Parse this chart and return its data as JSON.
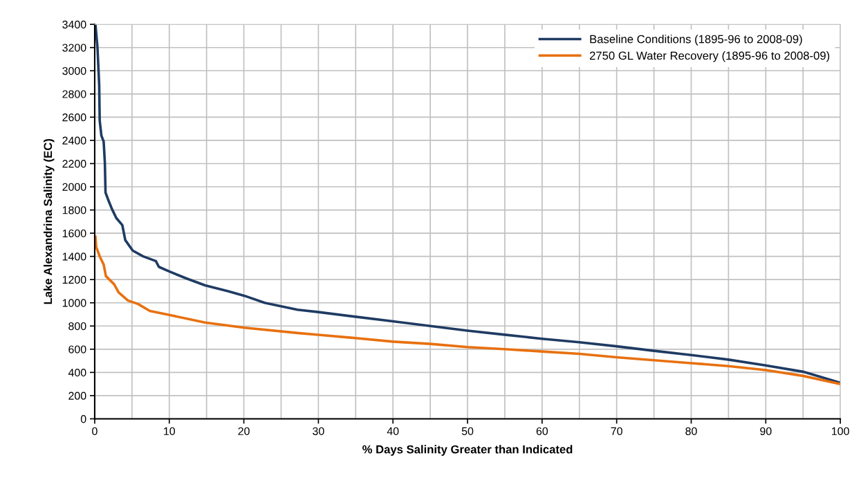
{
  "chart_data": {
    "type": "line",
    "xlabel": "% Days Salinity Greater than Indicated",
    "ylabel": "Lake Alexandrina Salinity (EC)",
    "xlim": [
      0,
      100
    ],
    "ylim": [
      0,
      3400
    ],
    "xticks": [
      0,
      {
        "value": 5,
        "label": null
      },
      10,
      {
        "value": 15,
        "label": null
      },
      20,
      {
        "value": 25,
        "label": null
      },
      30,
      {
        "value": 35,
        "label": null
      },
      40,
      {
        "value": 45,
        "label": null
      },
      50,
      {
        "value": 55,
        "label": null
      },
      60,
      {
        "value": 65,
        "label": null
      },
      70,
      {
        "value": 75,
        "label": null
      },
      80,
      {
        "value": 85,
        "label": null
      },
      90,
      {
        "value": 95,
        "label": null
      },
      100
    ],
    "yticks": [
      0,
      200,
      400,
      600,
      800,
      1000,
      1200,
      1400,
      1600,
      1800,
      2000,
      2200,
      2400,
      2600,
      2800,
      3000,
      3200,
      3400
    ],
    "grid": true,
    "legend": "top right",
    "marker": "none",
    "line_style": "solid",
    "series": [
      {
        "name": "Baseline Conditions (1895-96 to 2008-09)",
        "color": "#1f3b63",
        "x": [
          0,
          0.1,
          0.37,
          0.6,
          0.67,
          0.9,
          1.2,
          1.36,
          1.45,
          1.8,
          2.3,
          2.9,
          3.7,
          4.1,
          5.1,
          6.5,
          8.2,
          8.6,
          10,
          12.3,
          14.8,
          17.9,
          20.1,
          22.8,
          27.2,
          30,
          35,
          40,
          45,
          50,
          55,
          60,
          65,
          70,
          75,
          80,
          85,
          90,
          95,
          100
        ],
        "values": [
          3400,
          3400,
          3200,
          2880,
          2570,
          2440,
          2390,
          2210,
          1950,
          1890,
          1810,
          1730,
          1670,
          1540,
          1450,
          1400,
          1360,
          1310,
          1270,
          1210,
          1150,
          1100,
          1060,
          1000,
          940,
          920,
          880,
          840,
          800,
          760,
          725,
          690,
          660,
          625,
          586,
          550,
          510,
          460,
          406,
          310
        ]
      },
      {
        "name": "2750 GL Water Recovery (1895-96 to 2008-09)",
        "color": "#e8700f",
        "x": [
          0.1,
          0.2,
          0.74,
          1.2,
          1.5,
          2.6,
          3.2,
          4.45,
          5.8,
          7.4,
          10,
          14.8,
          20.1,
          27.2,
          30,
          35,
          40,
          45,
          50,
          55,
          60,
          65,
          70,
          75,
          80,
          85,
          90,
          95,
          100
        ],
        "values": [
          1570,
          1480,
          1390,
          1330,
          1230,
          1160,
          1090,
          1020,
          990,
          930,
          895,
          830,
          785,
          740,
          724,
          696,
          665,
          646,
          618,
          600,
          580,
          560,
          530,
          505,
          480,
          454,
          420,
          370,
          300
        ]
      }
    ]
  }
}
